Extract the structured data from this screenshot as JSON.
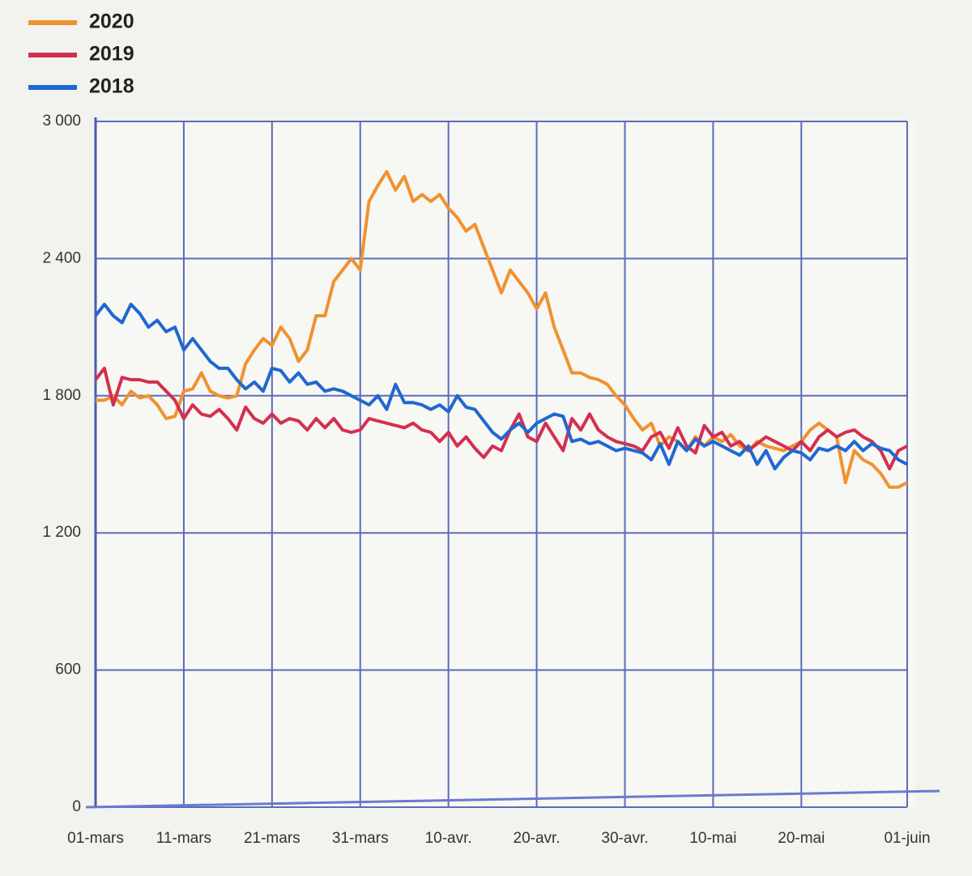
{
  "chart_data": {
    "type": "line",
    "categories": [
      "01-mars",
      null,
      null,
      null,
      null,
      null,
      null,
      null,
      null,
      null,
      "11-mars",
      null,
      null,
      null,
      null,
      null,
      null,
      null,
      null,
      null,
      "21-mars",
      null,
      null,
      null,
      null,
      null,
      null,
      null,
      null,
      null,
      "31-mars",
      null,
      null,
      null,
      null,
      null,
      null,
      null,
      null,
      null,
      "10-avr.",
      null,
      null,
      null,
      null,
      null,
      null,
      null,
      null,
      null,
      "20-avr.",
      null,
      null,
      null,
      null,
      null,
      null,
      null,
      null,
      null,
      "30-avr.",
      null,
      null,
      null,
      null,
      null,
      null,
      null,
      null,
      null,
      "10-mai",
      null,
      null,
      null,
      null,
      null,
      null,
      null,
      null,
      null,
      "20-mai",
      null,
      null,
      null,
      null,
      null,
      null,
      null,
      null,
      null,
      null,
      null,
      "01-juin"
    ],
    "series": [
      {
        "name": "2020",
        "color": "#f0922e",
        "values": [
          1780,
          1780,
          1800,
          1760,
          1820,
          1790,
          1800,
          1760,
          1700,
          1710,
          1820,
          1830,
          1900,
          1820,
          1800,
          1790,
          1800,
          1940,
          2000,
          2050,
          2020,
          2100,
          2050,
          1950,
          2000,
          2150,
          2150,
          2300,
          2350,
          2400,
          2350,
          2650,
          2720,
          2780,
          2700,
          2760,
          2650,
          2680,
          2650,
          2680,
          2620,
          2580,
          2520,
          2550,
          2450,
          2350,
          2250,
          2350,
          2300,
          2250,
          2180,
          2250,
          2100,
          2000,
          1900,
          1900,
          1880,
          1870,
          1850,
          1800,
          1760,
          1700,
          1650,
          1680,
          1580,
          1620,
          1600,
          1560,
          1620,
          1580,
          1620,
          1600,
          1630,
          1580,
          1560,
          1600,
          1580,
          1570,
          1560,
          1580,
          1600,
          1650,
          1680,
          1650,
          1620,
          1420,
          1560,
          1520,
          1500,
          1460,
          1400,
          1400,
          1420
        ]
      },
      {
        "name": "2019",
        "color": "#d42f4f",
        "values": [
          1870,
          1920,
          1760,
          1880,
          1870,
          1870,
          1860,
          1860,
          1820,
          1780,
          1700,
          1760,
          1720,
          1710,
          1740,
          1700,
          1650,
          1750,
          1700,
          1680,
          1720,
          1680,
          1700,
          1690,
          1650,
          1700,
          1660,
          1700,
          1650,
          1640,
          1650,
          1700,
          1690,
          1680,
          1670,
          1660,
          1680,
          1650,
          1640,
          1600,
          1640,
          1580,
          1620,
          1570,
          1530,
          1580,
          1560,
          1650,
          1720,
          1620,
          1600,
          1680,
          1620,
          1560,
          1700,
          1650,
          1720,
          1650,
          1620,
          1600,
          1590,
          1580,
          1560,
          1620,
          1640,
          1570,
          1660,
          1580,
          1550,
          1670,
          1620,
          1640,
          1580,
          1600,
          1560,
          1590,
          1620,
          1600,
          1580,
          1560,
          1600,
          1560,
          1620,
          1650,
          1620,
          1640,
          1650,
          1620,
          1600,
          1560,
          1480,
          1560,
          1580
        ]
      },
      {
        "name": "2018",
        "color": "#1f68d0",
        "values": [
          2150,
          2200,
          2150,
          2120,
          2200,
          2160,
          2100,
          2130,
          2080,
          2100,
          2000,
          2050,
          2000,
          1950,
          1920,
          1920,
          1870,
          1830,
          1860,
          1820,
          1920,
          1910,
          1860,
          1900,
          1850,
          1860,
          1820,
          1830,
          1820,
          1800,
          1780,
          1760,
          1800,
          1740,
          1850,
          1770,
          1770,
          1760,
          1740,
          1760,
          1730,
          1800,
          1750,
          1740,
          1690,
          1640,
          1610,
          1650,
          1680,
          1640,
          1680,
          1700,
          1720,
          1710,
          1600,
          1610,
          1590,
          1600,
          1580,
          1560,
          1570,
          1560,
          1550,
          1520,
          1590,
          1500,
          1600,
          1560,
          1610,
          1580,
          1600,
          1580,
          1560,
          1540,
          1580,
          1500,
          1560,
          1480,
          1530,
          1560,
          1550,
          1520,
          1570,
          1560,
          1580,
          1560,
          1600,
          1560,
          1590,
          1570,
          1560,
          1520,
          1500
        ]
      }
    ],
    "ylim": [
      0,
      3000
    ],
    "yticks": [
      0,
      600,
      {
        "value": 1200,
        "label": "1 200"
      },
      {
        "value": 1800,
        "label": "1 800"
      },
      {
        "value": 2400,
        "label": "2 400"
      },
      {
        "value": 3000,
        "label": "3 000"
      }
    ],
    "grid": true
  }
}
